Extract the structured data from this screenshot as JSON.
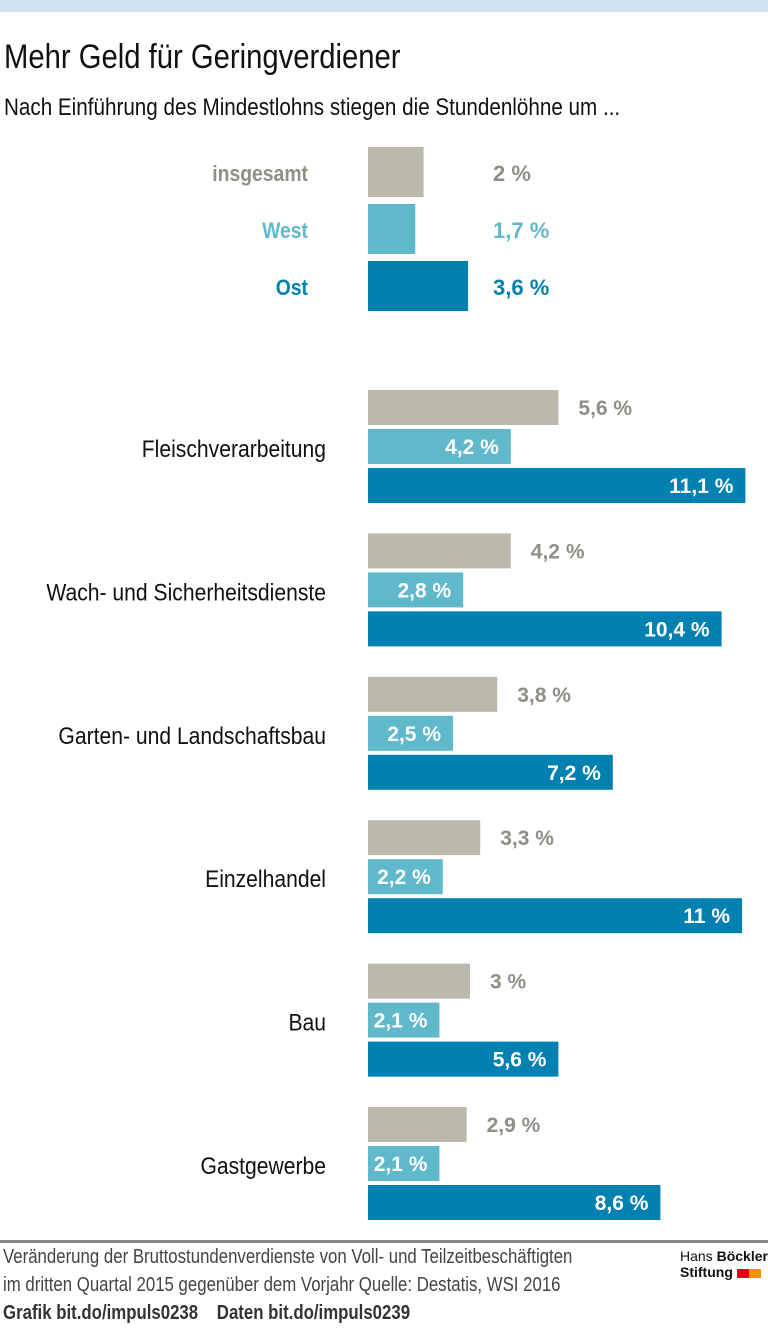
{
  "title": "Mehr Geld für Geringverdiener",
  "subtitle": "Nach Einführung des Mindestlohns stiegen die Stundenlöhne um ...",
  "colors": {
    "insgesamt": "#bbb9ab",
    "insgesamt_text": "#908e85",
    "West": "#5fb9cb",
    "Ost": "#0181b1",
    "label_text": "#111111"
  },
  "chart_data": [
    {
      "type": "bar",
      "orientation": "horizontal",
      "categories": [
        "insgesamt",
        "West",
        "Ost"
      ],
      "values": [
        2,
        1.7,
        3.6
      ],
      "value_labels": [
        "2 %",
        "1,7 %",
        "3,6 %"
      ]
    },
    {
      "type": "bar",
      "orientation": "horizontal",
      "categories": [
        "Fleischverarbeitung",
        "Wach- und Sicherheitsdienste",
        "Garten- und Landschaftsbau",
        "Einzelhandel",
        "Bau",
        "Gastgewerbe"
      ],
      "series": [
        {
          "name": "insgesamt",
          "values": [
            5.6,
            4.2,
            3.8,
            3.3,
            3,
            2.9
          ],
          "labels": [
            "5,6 %",
            "4,2 %",
            "3,8 %",
            "3,3 %",
            "3 %",
            "2,9 %"
          ]
        },
        {
          "name": "West",
          "values": [
            4.2,
            2.8,
            2.5,
            2.2,
            2.1,
            2.1
          ],
          "labels": [
            "4,2 %",
            "2,8 %",
            "2,5 %",
            "2,2 %",
            "2,1 %",
            "2,1 %"
          ]
        },
        {
          "name": "Ost",
          "values": [
            11.1,
            10.4,
            7.2,
            11,
            5.6,
            8.6
          ],
          "labels": [
            "11,1 %",
            "10,4 %",
            "7,2 %",
            "11 %",
            "5,6 %",
            "8,6 %"
          ]
        }
      ]
    }
  ],
  "footer": {
    "line1": "Veränderung der Bruttostundenverdienste von Voll- und Teilzeitbeschäftigten",
    "line2": "im dritten Quartal 2015 gegenüber dem Vorjahr   Quelle: Destatis, WSI 2016",
    "grafik": "Grafik bit.do/impuls0238",
    "daten": "Daten bit.do/impuls0239"
  },
  "logo": {
    "line1a": "Hans ",
    "line1b": "Böckler",
    "line2": "Stiftung",
    "colors": [
      "#e2001a",
      "#f39200"
    ]
  }
}
